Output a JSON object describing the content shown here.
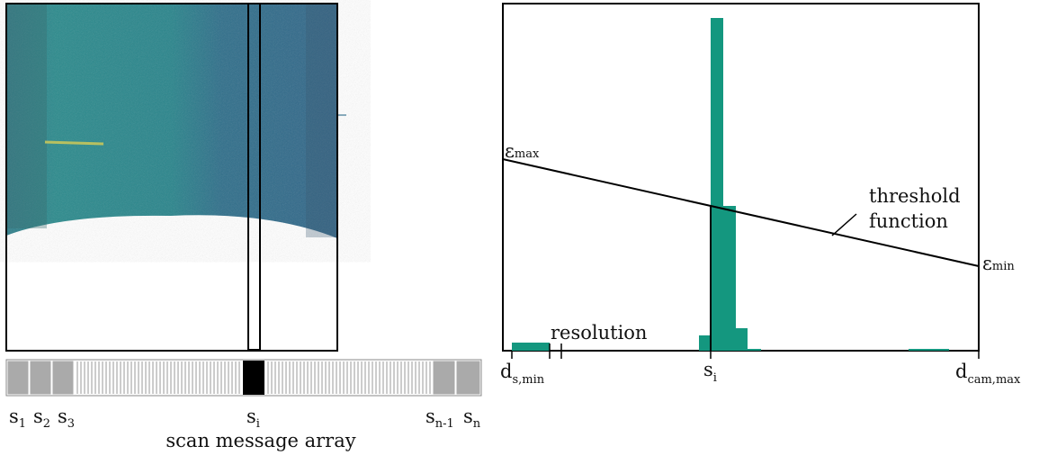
{
  "left": {
    "array_labels": [
      {
        "base": "s",
        "sub": "1"
      },
      {
        "base": "s",
        "sub": "2"
      },
      {
        "base": "s",
        "sub": "3"
      },
      {
        "base": "s",
        "sub": "i"
      },
      {
        "base": "s",
        "sub": "n-1"
      },
      {
        "base": "s",
        "sub": "n"
      }
    ],
    "caption": "scan message array"
  },
  "right": {
    "eps_max": {
      "base": "ε",
      "sub": "max"
    },
    "eps_min": {
      "base": "ε",
      "sub": "min"
    },
    "threshold": [
      "threshold",
      "function"
    ],
    "resolution": "resolution",
    "x_labels": [
      {
        "base": "d",
        "sub": "s,min"
      },
      {
        "base": "s",
        "sub": "i"
      },
      {
        "base": "d",
        "sub": "cam,max"
      }
    ]
  }
}
